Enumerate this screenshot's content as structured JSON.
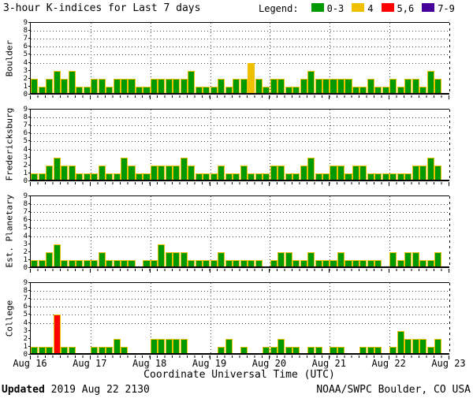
{
  "title": "3-hour K-indices for Last 7 days",
  "legend": {
    "label": "Legend:",
    "items": [
      {
        "label": "0-3",
        "key": "green"
      },
      {
        "label": "4",
        "key": "yellow"
      },
      {
        "label": "5,6",
        "key": "red"
      },
      {
        "label": "7-9",
        "key": "purple"
      }
    ]
  },
  "x_axis": {
    "tick_labels": [
      "Aug 16",
      "Aug 17",
      "Aug 18",
      "Aug 19",
      "Aug 20",
      "Aug 21",
      "Aug 22",
      "Aug 23"
    ],
    "label": "Coordinate Universal Time (UTC)"
  },
  "y_axis": {
    "ticks": [
      0,
      1,
      2,
      3,
      4,
      5,
      6,
      7,
      8,
      9
    ]
  },
  "footer": {
    "updated_label": "Updated",
    "updated_time": "2019 Aug 22 2130",
    "credit": "NOAA/SWPC Boulder, CO USA"
  },
  "chart_data": {
    "type": "bar",
    "title": "3-hour K-indices for Last 7 days",
    "x_start": "Aug 16",
    "x_end": "Aug 23",
    "days": 7,
    "bars_per_day": 8,
    "hours_per_bar": 3,
    "ylim": [
      0,
      9
    ],
    "grid": {
      "horizontal_dotted_at_k": [
        4,
        5,
        6,
        7,
        8
      ],
      "vertical_dotted_at_day_boundaries": true,
      "right_edge": "dashed"
    },
    "legend_position": "top-right",
    "colors": {
      "green": "#009900",
      "yellow": "#EFC000",
      "red": "#FF0000",
      "purple": "#440099",
      "outline": "#EFC000"
    },
    "color_scale": [
      {
        "k_range": "0-3",
        "color": "#009900"
      },
      {
        "k_range": "4",
        "color": "#EFC000"
      },
      {
        "k_range": "5,6",
        "color": "#FF0000"
      },
      {
        "k_range": "7-9",
        "color": "#440099"
      }
    ],
    "panels": [
      {
        "station": "Boulder",
        "days_values": [
          [
            2,
            1,
            2,
            3,
            2,
            3,
            1,
            1
          ],
          [
            2,
            2,
            1,
            2,
            2,
            2,
            1,
            1
          ],
          [
            2,
            2,
            2,
            2,
            2,
            3,
            1,
            1
          ],
          [
            1,
            2,
            1,
            2,
            2,
            4,
            2,
            1
          ],
          [
            2,
            2,
            1,
            1,
            2,
            3,
            2,
            2
          ],
          [
            2,
            2,
            2,
            1,
            1,
            2,
            1,
            1
          ],
          [
            2,
            1,
            2,
            2,
            1,
            3,
            2,
            0
          ]
        ]
      },
      {
        "station": "Fredericksburg",
        "days_values": [
          [
            1,
            1,
            2,
            3,
            2,
            2,
            1,
            1
          ],
          [
            1,
            2,
            1,
            1,
            3,
            2,
            1,
            1
          ],
          [
            2,
            2,
            2,
            2,
            3,
            2,
            1,
            1
          ],
          [
            1,
            2,
            1,
            1,
            2,
            1,
            1,
            1
          ],
          [
            2,
            2,
            1,
            1,
            2,
            3,
            1,
            1
          ],
          [
            2,
            2,
            1,
            2,
            2,
            1,
            1,
            1
          ],
          [
            1,
            1,
            1,
            2,
            2,
            3,
            2,
            0
          ]
        ]
      },
      {
        "station": "Est. Planetary",
        "days_values": [
          [
            1,
            1,
            2,
            3,
            1,
            1,
            1,
            1
          ],
          [
            1,
            2,
            1,
            1,
            1,
            1,
            0,
            1
          ],
          [
            1,
            3,
            2,
            2,
            2,
            1,
            1,
            1
          ],
          [
            1,
            2,
            1,
            1,
            1,
            1,
            1,
            0
          ],
          [
            1,
            2,
            2,
            1,
            1,
            2,
            1,
            1
          ],
          [
            1,
            2,
            1,
            1,
            1,
            1,
            1,
            0
          ],
          [
            2,
            1,
            2,
            2,
            1,
            1,
            2,
            0
          ]
        ]
      },
      {
        "station": "College",
        "days_values": [
          [
            1,
            1,
            1,
            5,
            1,
            1,
            0,
            0
          ],
          [
            1,
            1,
            1,
            2,
            1,
            0,
            0,
            0
          ],
          [
            2,
            2,
            2,
            2,
            2,
            0,
            0,
            0
          ],
          [
            0,
            1,
            2,
            0,
            1,
            0,
            0,
            1
          ],
          [
            1,
            2,
            1,
            1,
            0,
            1,
            1,
            0
          ],
          [
            1,
            1,
            0,
            0,
            1,
            1,
            1,
            0
          ],
          [
            1,
            3,
            2,
            2,
            2,
            1,
            2,
            0
          ]
        ]
      }
    ]
  }
}
